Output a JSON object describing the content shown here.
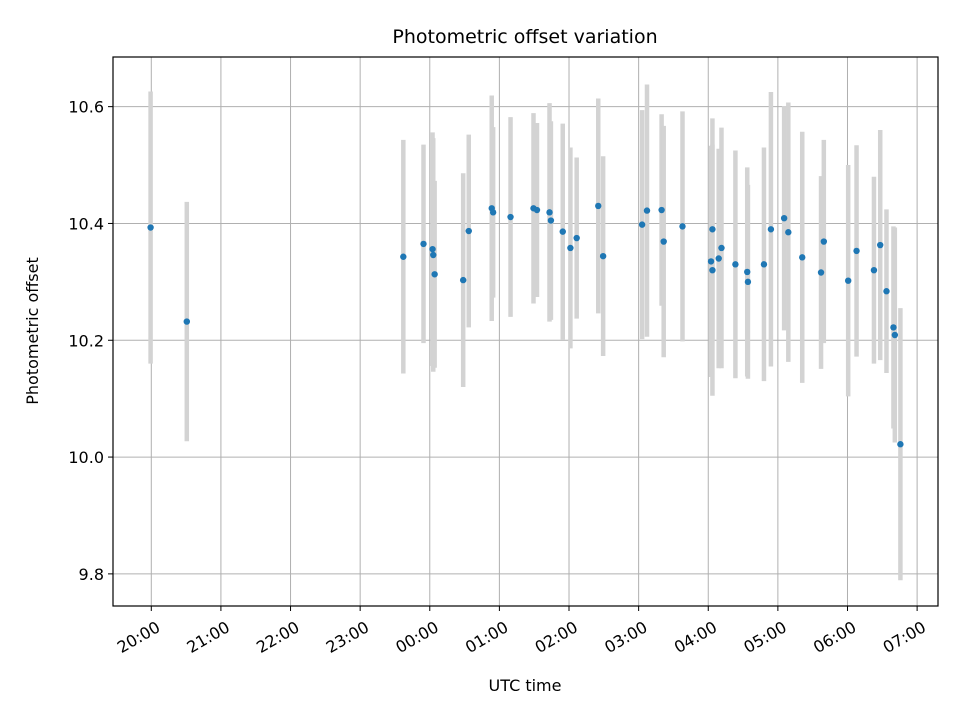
{
  "chart_data": {
    "type": "scatter",
    "title": "Photometric offset variation",
    "xlabel": "UTC time",
    "ylabel": "Photometric offset",
    "x_unit": "hour",
    "xlim": [
      19.45,
      31.3
    ],
    "ylim": [
      9.745,
      10.685
    ],
    "x_ticks": [
      20,
      21,
      22,
      23,
      24,
      25,
      26,
      27,
      28,
      29,
      30,
      31
    ],
    "x_tick_labels": [
      "20:00",
      "21:00",
      "22:00",
      "23:00",
      "00:00",
      "01:00",
      "02:00",
      "03:00",
      "04:00",
      "05:00",
      "06:00",
      "07:00"
    ],
    "y_ticks": [
      9.8,
      10.0,
      10.2,
      10.4,
      10.6
    ],
    "y_tick_labels": [
      "9.8",
      "10.0",
      "10.2",
      "10.4",
      "10.6"
    ],
    "grid": true,
    "colors": {
      "marker": "#1f77b4",
      "errorbar": "#d3d3d3",
      "grid": "#b0b0b0"
    },
    "series": [
      {
        "x": [
          19.99,
          20.51,
          23.62,
          23.91,
          24.04,
          24.05,
          24.07,
          24.48,
          24.56,
          24.89,
          24.91,
          25.16,
          25.49,
          25.54,
          25.72,
          25.74,
          25.91,
          26.02,
          26.11,
          26.42,
          26.49,
          27.05,
          27.12,
          27.33,
          27.36,
          27.63,
          28.06,
          28.04,
          28.06,
          28.15,
          28.19,
          28.39,
          28.56,
          28.57,
          28.8,
          28.9,
          29.09,
          29.15,
          29.35,
          29.62,
          29.66,
          30.01,
          30.13,
          30.38,
          30.47,
          30.56,
          30.66,
          30.68,
          30.76
        ],
        "y": [
          10.393,
          10.232,
          10.343,
          10.365,
          10.356,
          10.346,
          10.313,
          10.303,
          10.387,
          10.426,
          10.419,
          10.411,
          10.426,
          10.423,
          10.419,
          10.405,
          10.386,
          10.358,
          10.375,
          10.43,
          10.344,
          10.398,
          10.422,
          10.423,
          10.369,
          10.395,
          10.32,
          10.335,
          10.39,
          10.34,
          10.358,
          10.33,
          10.317,
          10.3,
          10.33,
          10.39,
          10.409,
          10.385,
          10.342,
          10.316,
          10.369,
          10.302,
          10.353,
          10.32,
          10.363,
          10.284,
          10.222,
          10.209,
          10.022
        ],
        "yerr": [
          0.233,
          0.205,
          0.2,
          0.17,
          0.2,
          0.2,
          0.16,
          0.183,
          0.165,
          0.193,
          0.146,
          0.171,
          0.163,
          0.149,
          0.187,
          0.17,
          0.185,
          0.172,
          0.138,
          0.184,
          0.171,
          0.196,
          0.216,
          0.164,
          0.198,
          0.197,
          0.215,
          0.198,
          0.19,
          0.188,
          0.206,
          0.195,
          0.179,
          0.166,
          0.2,
          0.235,
          0.192,
          0.222,
          0.215,
          0.165,
          0.174,
          0.198,
          0.181,
          0.16,
          0.197,
          0.14,
          0.173,
          0.184,
          0.233
        ]
      }
    ]
  }
}
